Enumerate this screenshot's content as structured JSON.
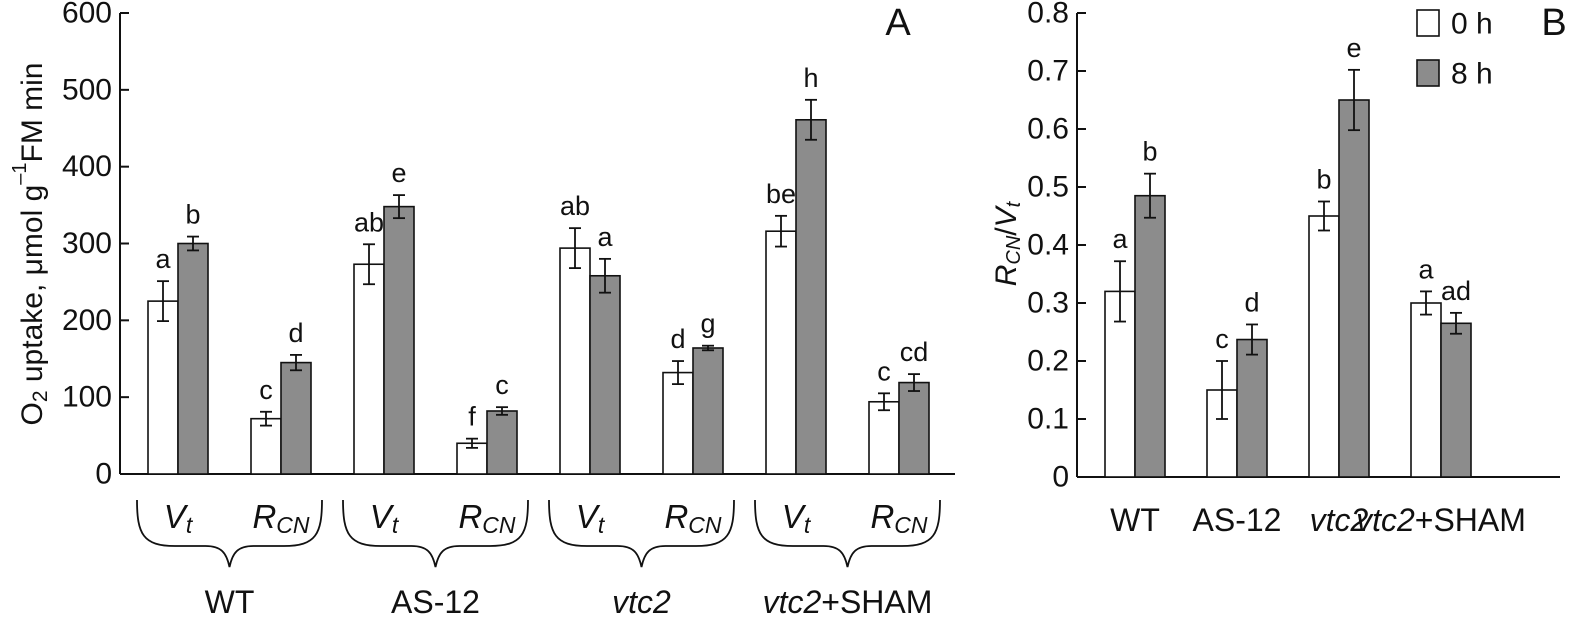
{
  "chart_data": [
    {
      "panel": "A",
      "type": "bar",
      "ylabel_parts": [
        "O",
        "2",
        " uptake, μmol g",
        "–1",
        "FM min"
      ],
      "ylim": [
        0,
        600
      ],
      "yticks": [
        0,
        100,
        200,
        300,
        400,
        500,
        600
      ],
      "series_names": [
        "0 h",
        "8 h"
      ],
      "groups": [
        {
          "label": "WT",
          "label_italic": false,
          "bars": [
            {
              "sym": "V",
              "sub": "t",
              "values": [
                225,
                300
              ],
              "errors": [
                26,
                9
              ],
              "letters": [
                "a",
                "b"
              ]
            },
            {
              "sym": "R",
              "sub": "CN",
              "values": [
                72,
                145
              ],
              "errors": [
                9,
                10
              ],
              "letters": [
                "c",
                "d"
              ]
            }
          ]
        },
        {
          "label": "AS-12",
          "label_italic": false,
          "bars": [
            {
              "sym": "V",
              "sub": "t",
              "values": [
                273,
                348
              ],
              "errors": [
                26,
                15
              ],
              "letters": [
                "ab",
                "e"
              ]
            },
            {
              "sym": "R",
              "sub": "CN",
              "values": [
                40,
                82
              ],
              "errors": [
                6,
                5
              ],
              "letters": [
                "f",
                "c"
              ]
            }
          ]
        },
        {
          "label": "vtc2",
          "label_italic": true,
          "bars": [
            {
              "sym": "V",
              "sub": "t",
              "values": [
                294,
                258
              ],
              "errors": [
                26,
                22
              ],
              "letters": [
                "ab",
                "a"
              ]
            },
            {
              "sym": "R",
              "sub": "CN",
              "values": [
                132,
                164
              ],
              "errors": [
                15,
                3
              ],
              "letters": [
                "d",
                "g"
              ]
            }
          ]
        },
        {
          "label_parts": [
            "vtc2",
            "+SHAM"
          ],
          "label_italic": true,
          "bars": [
            {
              "sym": "V",
              "sub": "t",
              "values": [
                316,
                461
              ],
              "errors": [
                20,
                26
              ],
              "letters": [
                "be",
                "h"
              ]
            },
            {
              "sym": "R",
              "sub": "CN",
              "values": [
                94,
                119
              ],
              "errors": [
                11,
                11
              ],
              "letters": [
                "c",
                "cd"
              ]
            }
          ]
        }
      ]
    },
    {
      "panel": "B",
      "type": "bar",
      "ylabel_parts": [
        "R",
        "CN",
        "/",
        "V",
        "t"
      ],
      "ylim": [
        0,
        0.8
      ],
      "yticks": [
        0,
        0.1,
        0.2,
        0.3,
        0.4,
        0.5,
        0.6,
        0.7,
        0.8
      ],
      "ytick_labels": [
        "0",
        "0.1",
        "0.2",
        "0.3",
        "0.4",
        "0.5",
        "0.6",
        "0.7",
        "0.8"
      ],
      "legend": [
        "0 h",
        "8 h"
      ],
      "categories": [
        {
          "label": "WT",
          "italic": false,
          "values": [
            0.32,
            0.485
          ],
          "errors": [
            0.052,
            0.038
          ],
          "letters": [
            "a",
            "b"
          ]
        },
        {
          "label": "AS-12",
          "italic": false,
          "values": [
            0.15,
            0.237
          ],
          "errors": [
            0.05,
            0.026
          ],
          "letters": [
            "c",
            "d"
          ]
        },
        {
          "label": "vtc2",
          "italic": true,
          "values": [
            0.45,
            0.65
          ],
          "errors": [
            0.025,
            0.052
          ],
          "letters": [
            "b",
            "e"
          ]
        },
        {
          "label_parts": [
            "vtc2",
            "+SHAM"
          ],
          "italic": true,
          "values": [
            0.3,
            0.265
          ],
          "errors": [
            0.02,
            0.018
          ],
          "letters": [
            "a",
            "ad"
          ]
        }
      ]
    }
  ],
  "colors": {
    "series0_fill": "#ffffff",
    "series1_fill": "#8c8c8c",
    "stroke": "#111111"
  }
}
